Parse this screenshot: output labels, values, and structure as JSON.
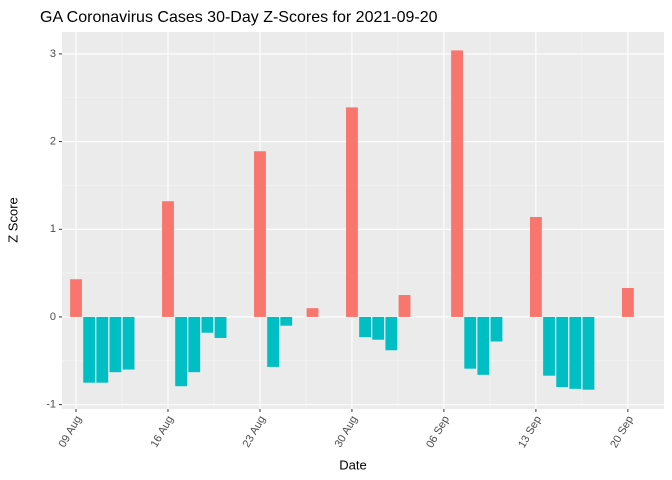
{
  "chart_data": {
    "type": "bar",
    "title": "GA Coronavirus Cases 30-Day Z-Scores for 2021-09-20",
    "x_label": "Date",
    "y_label": "Z Score",
    "categories": [
      "09 Aug",
      null,
      null,
      null,
      null,
      null,
      null,
      "16 Aug",
      null,
      null,
      null,
      null,
      null,
      null,
      "23 Aug",
      null,
      null,
      null,
      null,
      null,
      null,
      "30 Aug",
      null,
      null,
      null,
      null,
      null,
      null,
      "06 Sep",
      null,
      null,
      null,
      null,
      null,
      null,
      "13 Sep",
      null,
      null,
      null,
      null,
      null,
      null,
      "20 Sep"
    ],
    "values": [
      0.43,
      -0.75,
      -0.75,
      -0.63,
      -0.6,
      null,
      null,
      1.32,
      -0.79,
      -0.63,
      -0.18,
      -0.24,
      null,
      null,
      1.89,
      -0.57,
      -0.1,
      null,
      0.1,
      null,
      null,
      2.39,
      -0.23,
      -0.26,
      -0.38,
      0.25,
      null,
      null,
      null,
      3.04,
      -0.59,
      -0.66,
      -0.28,
      null,
      null,
      1.14,
      -0.67,
      -0.8,
      -0.82,
      -0.83,
      null,
      null,
      0.33
    ],
    "positive_color": "#F8766D",
    "negative_color": "#00BFC4",
    "ylim": [
      -1.05,
      3.25
    ],
    "yticks": [
      -1,
      0,
      1,
      2,
      3
    ],
    "grid": true
  }
}
